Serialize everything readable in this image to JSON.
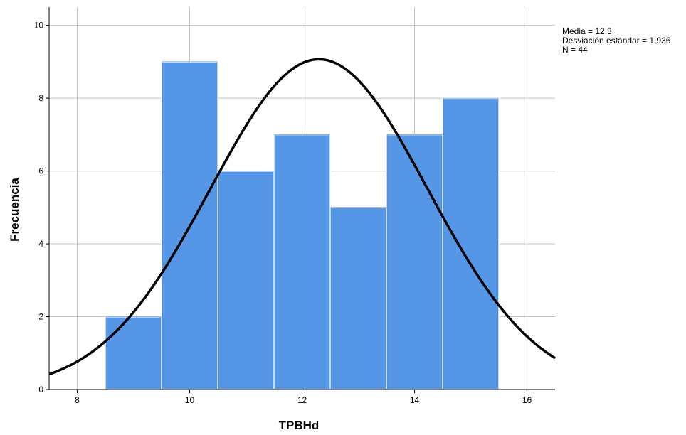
{
  "chart_data": {
    "type": "bar",
    "subtype": "histogram-with-normal-curve",
    "xlabel": "TPBHd",
    "ylabel": "Frecuencia",
    "xlim": [
      7.5,
      16.5
    ],
    "ylim": [
      0,
      10.5
    ],
    "x_ticks": [
      8,
      10,
      12,
      14,
      16
    ],
    "y_ticks": [
      0,
      2,
      4,
      6,
      8,
      10
    ],
    "bins": [
      {
        "x0": 8.5,
        "x1": 9.5,
        "value": 2
      },
      {
        "x0": 9.5,
        "x1": 10.5,
        "value": 9
      },
      {
        "x0": 10.5,
        "x1": 11.5,
        "value": 6
      },
      {
        "x0": 11.5,
        "x1": 12.5,
        "value": 7
      },
      {
        "x0": 12.5,
        "x1": 13.5,
        "value": 5
      },
      {
        "x0": 13.5,
        "x1": 14.5,
        "value": 7
      },
      {
        "x0": 14.5,
        "x1": 15.5,
        "value": 8
      }
    ],
    "normal_curve": {
      "mean": 12.3,
      "sd": 1.936,
      "n": 44,
      "bin_width": 1
    },
    "stats": {
      "media": "Media = 12,3",
      "desviacion": "Desviación estándar = 1,936",
      "n": "N = 44"
    },
    "grid": true,
    "bar_color": "#5596E6",
    "bar_edge_color": "#ffffff",
    "curve_color": "#000000",
    "grid_color": "#c0c0c0"
  }
}
